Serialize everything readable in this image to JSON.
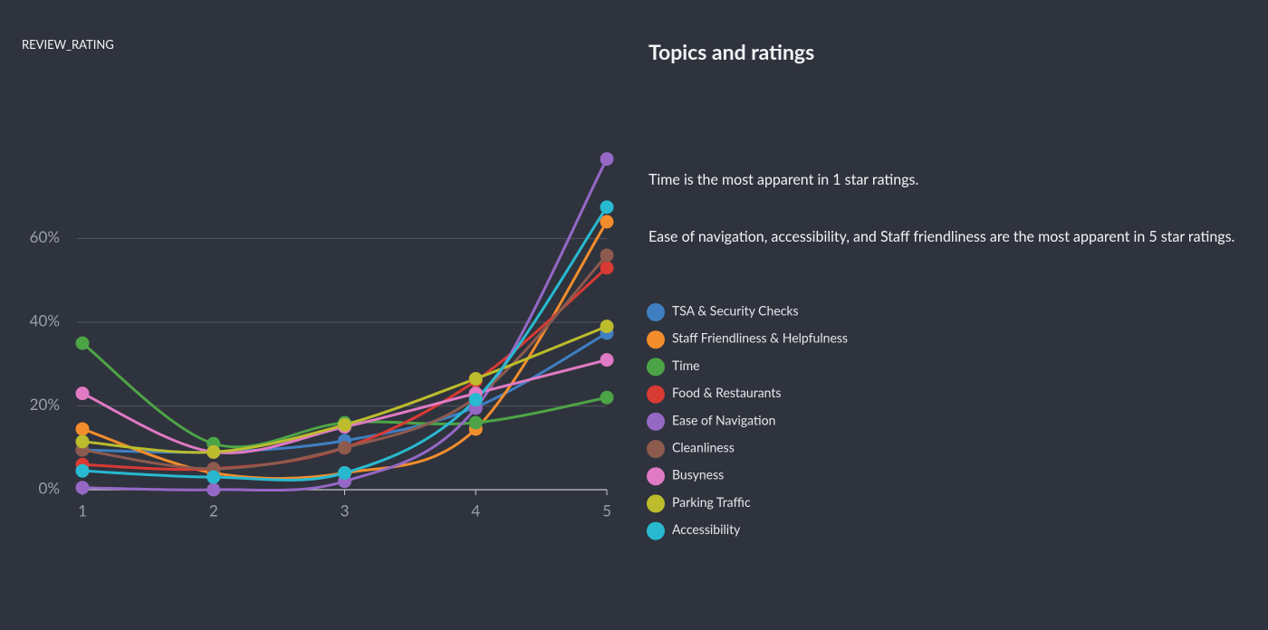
{
  "panel_label": "REVIEW_RATING",
  "title": "Topics and ratings",
  "insights": [
    "Time is the most apparent in 1 star ratings.",
    "Ease of navigation, accessibility, and Staff friendliness are the most apparent in 5 star ratings."
  ],
  "chart_data": {
    "type": "line",
    "x": [
      1,
      2,
      3,
      4,
      5
    ],
    "xlim": [
      1,
      5
    ],
    "xticks": [
      1,
      2,
      3,
      4,
      5
    ],
    "ylim": [
      0,
      80
    ],
    "yticks": [
      {
        "value": 0,
        "label": "0%"
      },
      {
        "value": 20,
        "label": "20%"
      },
      {
        "value": 40,
        "label": "40%"
      },
      {
        "value": 60,
        "label": "60%"
      }
    ],
    "grid": true,
    "series": [
      {
        "name": "TSA & Security Checks",
        "color": "#3f7fc1",
        "values": [
          9.5,
          9,
          11.7,
          19.7,
          37.4
        ]
      },
      {
        "name": "Staff Friendliness & Helpfulness",
        "color": "#f38d2c",
        "values": [
          14.5,
          4,
          4,
          14.5,
          64
        ]
      },
      {
        "name": "Time",
        "color": "#4da447",
        "values": [
          35,
          11,
          16,
          16,
          22
        ]
      },
      {
        "name": "Food & Restaurants",
        "color": "#d83a34",
        "values": [
          6,
          5,
          10,
          26,
          53
        ]
      },
      {
        "name": "Ease of Navigation",
        "color": "#9568c6",
        "values": [
          0.5,
          0,
          2,
          19.5,
          79
        ]
      },
      {
        "name": "Cleanliness",
        "color": "#8d5a4e",
        "values": [
          9.5,
          5,
          10,
          22,
          56
        ]
      },
      {
        "name": "Busyness",
        "color": "#e07ac4",
        "values": [
          23,
          9,
          15,
          23,
          31
        ]
      },
      {
        "name": "Parking Traffic",
        "color": "#bcbc2c",
        "values": [
          11.5,
          9,
          15.5,
          26.5,
          39
        ]
      },
      {
        "name": "Accessibility",
        "color": "#28b9d0",
        "values": [
          4.5,
          3,
          4,
          21.5,
          67.5
        ]
      }
    ]
  }
}
